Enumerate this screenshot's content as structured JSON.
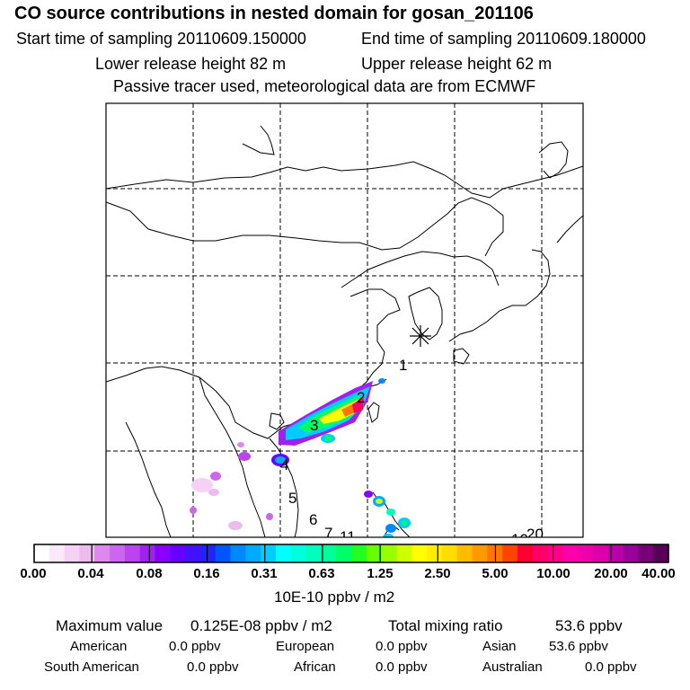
{
  "header": {
    "title": "CO  source contributions in nested domain for gosan_201106",
    "start_label": "Start time of sampling 20110609.150000",
    "end_label": "End time of sampling 20110609.180000",
    "lower_label": "Lower release height   82 m",
    "upper_label": "Upper release height   62 m",
    "note": "Passive tracer used, meteorological data are from ECMWF"
  },
  "map": {
    "receptor_marker": "asterisk",
    "numbers": [
      "1",
      "2",
      "3",
      "4",
      "5",
      "6",
      "7",
      "11",
      "10",
      "20"
    ]
  },
  "colorbar": {
    "labels": [
      "0.00",
      "0.04",
      "0.08",
      "0.16",
      "0.31",
      "0.63",
      "1.25",
      "2.50",
      "5.00",
      "10.00",
      "20.00",
      "40.00"
    ],
    "colors": [
      "#ffffff",
      "#fbe8fb",
      "#f5d2f5",
      "#eebbee",
      "#dd88ee",
      "#cc66ee",
      "#bb44f0",
      "#a020f0",
      "#8800ff",
      "#6600ff",
      "#4411ff",
      "#2222ff",
      "#0055ff",
      "#0088ff",
      "#00aaff",
      "#00ccff",
      "#00ffff",
      "#00ffdd",
      "#00ffbb",
      "#00ff99",
      "#00ff66",
      "#22ff22",
      "#66ff00",
      "#99ff00",
      "#ccff00",
      "#ffff00",
      "#ffee00",
      "#ffdd00",
      "#ffbb00",
      "#ff9900",
      "#ff7700",
      "#ff4400",
      "#ff0033",
      "#ff0066",
      "#ff0088",
      "#ff00aa",
      "#ee00aa",
      "#dd00aa",
      "#bb00aa",
      "#990099",
      "#770077",
      "#550055"
    ],
    "units": "10E-10 ppbv / m2"
  },
  "stats": {
    "max_label": "Maximum value",
    "max_value": "0.125E-08 ppbv / m2",
    "total_label": "Total mixing ratio",
    "total_value": "53.6 ppbv"
  },
  "regions": [
    {
      "name": "American",
      "value": "0.0 ppbv"
    },
    {
      "name": "European",
      "value": "0.0 ppbv"
    },
    {
      "name": "Asian",
      "value": "53.6 ppbv"
    },
    {
      "name": "South American",
      "value": "0.0 ppbv"
    },
    {
      "name": "African",
      "value": "0.0 ppbv"
    },
    {
      "name": "Australian",
      "value": "0.0 ppbv"
    }
  ]
}
